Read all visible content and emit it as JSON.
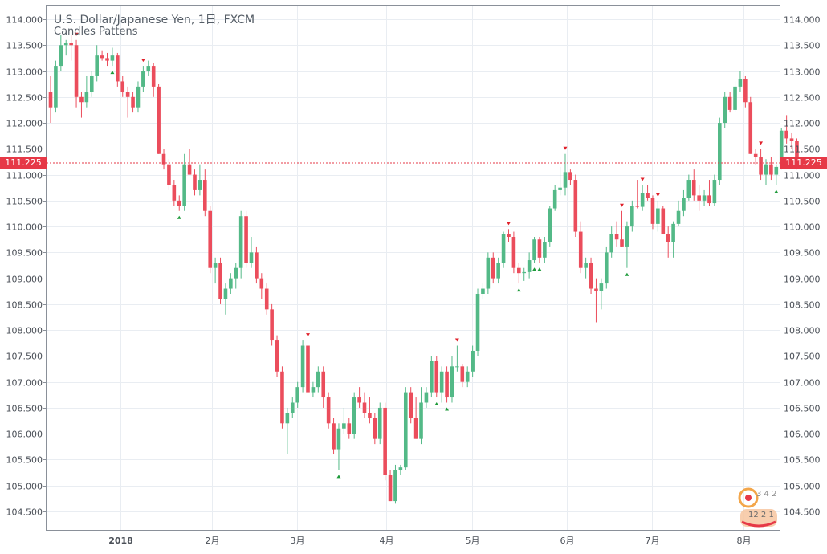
{
  "header": {
    "title": "U.S. Dollar/Japanese Yen, 1日, FXCM",
    "subtitle": "Candles Pattens"
  },
  "current_price": "111.225",
  "watermark": {
    "text_top": "3 4 2",
    "text_bottom": "12 2 1"
  },
  "colors": {
    "up": "#53b987",
    "down": "#eb4d5c",
    "price_line": "#e63947",
    "grid": "#e9edf2"
  },
  "chart_data": {
    "type": "candlestick",
    "title": "U.S. Dollar/Japanese Yen, 1日, FXCM",
    "ylim": [
      104.2,
      114.25
    ],
    "y_ticks": [
      "114.000",
      "113.500",
      "113.000",
      "112.500",
      "112.000",
      "111.500",
      "111.000",
      "110.500",
      "110.000",
      "109.500",
      "109.000",
      "108.500",
      "108.000",
      "107.500",
      "107.000",
      "106.500",
      "106.000",
      "105.500",
      "105.000",
      "104.500"
    ],
    "x_labels": [
      "2018",
      "2月",
      "3月",
      "4月",
      "5月",
      "6月",
      "7月",
      "8月"
    ],
    "candles": [
      {
        "o": 112.6,
        "h": 112.9,
        "l": 112.0,
        "c": 112.3
      },
      {
        "o": 112.3,
        "h": 113.2,
        "l": 112.2,
        "c": 113.1
      },
      {
        "o": 113.1,
        "h": 113.7,
        "l": 113.0,
        "c": 113.5
      },
      {
        "o": 113.5,
        "h": 113.6,
        "l": 113.3,
        "c": 113.55
      },
      {
        "o": 113.55,
        "h": 113.7,
        "l": 113.2,
        "c": 113.5
      },
      {
        "o": 113.5,
        "h": 113.6,
        "l": 112.3,
        "c": 112.5
      },
      {
        "o": 112.5,
        "h": 112.6,
        "l": 112.1,
        "c": 112.4
      },
      {
        "o": 112.4,
        "h": 112.9,
        "l": 112.3,
        "c": 112.6
      },
      {
        "o": 112.6,
        "h": 113.0,
        "l": 112.5,
        "c": 112.9
      },
      {
        "o": 112.9,
        "h": 113.5,
        "l": 112.8,
        "c": 113.3
      },
      {
        "o": 113.3,
        "h": 113.4,
        "l": 113.2,
        "c": 113.25
      },
      {
        "o": 113.25,
        "h": 113.35,
        "l": 113.1,
        "c": 113.2
      },
      {
        "o": 113.2,
        "h": 113.45,
        "l": 113.1,
        "c": 113.3
      },
      {
        "o": 113.3,
        "h": 113.35,
        "l": 112.7,
        "c": 112.8
      },
      {
        "o": 112.8,
        "h": 112.9,
        "l": 112.5,
        "c": 112.6
      },
      {
        "o": 112.6,
        "h": 112.7,
        "l": 112.1,
        "c": 112.5
      },
      {
        "o": 112.5,
        "h": 112.6,
        "l": 112.2,
        "c": 112.3
      },
      {
        "o": 112.3,
        "h": 112.8,
        "l": 112.2,
        "c": 112.7
      },
      {
        "o": 112.7,
        "h": 113.1,
        "l": 112.6,
        "c": 113.0
      },
      {
        "o": 113.0,
        "h": 113.2,
        "l": 112.9,
        "c": 113.1
      },
      {
        "o": 113.1,
        "h": 113.15,
        "l": 112.5,
        "c": 112.7
      },
      {
        "o": 112.7,
        "h": 112.75,
        "l": 111.4,
        "c": 111.4
      },
      {
        "o": 111.4,
        "h": 111.5,
        "l": 111.1,
        "c": 111.2
      },
      {
        "o": 111.2,
        "h": 111.3,
        "l": 110.7,
        "c": 110.8
      },
      {
        "o": 110.8,
        "h": 110.9,
        "l": 110.4,
        "c": 110.5
      },
      {
        "o": 110.5,
        "h": 110.6,
        "l": 110.3,
        "c": 110.4
      },
      {
        "o": 110.4,
        "h": 111.4,
        "l": 110.3,
        "c": 111.2
      },
      {
        "o": 111.2,
        "h": 111.5,
        "l": 111.0,
        "c": 111.0
      },
      {
        "o": 111.0,
        "h": 111.1,
        "l": 110.6,
        "c": 110.7
      },
      {
        "o": 110.7,
        "h": 111.2,
        "l": 110.6,
        "c": 110.9
      },
      {
        "o": 110.9,
        "h": 111.1,
        "l": 110.2,
        "c": 110.3
      },
      {
        "o": 110.3,
        "h": 110.4,
        "l": 109.1,
        "c": 109.2
      },
      {
        "o": 109.2,
        "h": 109.4,
        "l": 108.9,
        "c": 109.3
      },
      {
        "o": 109.3,
        "h": 109.4,
        "l": 108.5,
        "c": 108.6
      },
      {
        "o": 108.6,
        "h": 108.9,
        "l": 108.3,
        "c": 108.8
      },
      {
        "o": 108.8,
        "h": 109.1,
        "l": 108.7,
        "c": 109.0
      },
      {
        "o": 109.0,
        "h": 109.3,
        "l": 108.8,
        "c": 109.2
      },
      {
        "o": 109.2,
        "h": 110.3,
        "l": 109.0,
        "c": 110.2
      },
      {
        "o": 110.2,
        "h": 110.3,
        "l": 109.2,
        "c": 109.3
      },
      {
        "o": 109.3,
        "h": 109.8,
        "l": 109.2,
        "c": 109.5
      },
      {
        "o": 109.5,
        "h": 109.6,
        "l": 108.9,
        "c": 109.0
      },
      {
        "o": 109.0,
        "h": 109.1,
        "l": 108.6,
        "c": 108.8
      },
      {
        "o": 108.8,
        "h": 108.9,
        "l": 108.3,
        "c": 108.4
      },
      {
        "o": 108.4,
        "h": 108.5,
        "l": 107.7,
        "c": 107.8
      },
      {
        "o": 107.8,
        "h": 107.9,
        "l": 107.1,
        "c": 107.2
      },
      {
        "o": 107.2,
        "h": 107.3,
        "l": 106.1,
        "c": 106.2
      },
      {
        "o": 106.2,
        "h": 106.5,
        "l": 105.6,
        "c": 106.4
      },
      {
        "o": 106.4,
        "h": 106.7,
        "l": 106.3,
        "c": 106.6
      },
      {
        "o": 106.6,
        "h": 107.0,
        "l": 106.5,
        "c": 106.9
      },
      {
        "o": 106.9,
        "h": 107.8,
        "l": 106.8,
        "c": 107.7
      },
      {
        "o": 107.7,
        "h": 107.8,
        "l": 106.7,
        "c": 106.8
      },
      {
        "o": 106.8,
        "h": 107.0,
        "l": 106.7,
        "c": 106.9
      },
      {
        "o": 106.9,
        "h": 107.3,
        "l": 106.8,
        "c": 107.2
      },
      {
        "o": 107.2,
        "h": 107.3,
        "l": 106.5,
        "c": 106.7
      },
      {
        "o": 106.7,
        "h": 106.8,
        "l": 106.1,
        "c": 106.2
      },
      {
        "o": 106.2,
        "h": 106.3,
        "l": 105.6,
        "c": 105.7
      },
      {
        "o": 105.7,
        "h": 106.2,
        "l": 105.3,
        "c": 106.1
      },
      {
        "o": 106.1,
        "h": 106.5,
        "l": 106.0,
        "c": 106.2
      },
      {
        "o": 106.2,
        "h": 106.3,
        "l": 105.9,
        "c": 106.0
      },
      {
        "o": 106.0,
        "h": 106.8,
        "l": 105.9,
        "c": 106.7
      },
      {
        "o": 106.7,
        "h": 106.9,
        "l": 106.5,
        "c": 106.6
      },
      {
        "o": 106.6,
        "h": 106.8,
        "l": 106.3,
        "c": 106.4
      },
      {
        "o": 106.4,
        "h": 106.7,
        "l": 106.2,
        "c": 106.3
      },
      {
        "o": 106.3,
        "h": 106.4,
        "l": 105.8,
        "c": 105.9
      },
      {
        "o": 105.9,
        "h": 106.6,
        "l": 105.8,
        "c": 106.5
      },
      {
        "o": 106.5,
        "h": 106.6,
        "l": 105.1,
        "c": 105.2
      },
      {
        "o": 105.2,
        "h": 105.3,
        "l": 104.7,
        "c": 104.7
      },
      {
        "o": 104.7,
        "h": 105.4,
        "l": 104.65,
        "c": 105.3
      },
      {
        "o": 105.3,
        "h": 105.4,
        "l": 105.2,
        "c": 105.35
      },
      {
        "o": 105.35,
        "h": 106.9,
        "l": 105.3,
        "c": 106.8
      },
      {
        "o": 106.8,
        "h": 106.9,
        "l": 106.2,
        "c": 106.3
      },
      {
        "o": 106.3,
        "h": 106.7,
        "l": 105.9,
        "c": 105.9
      },
      {
        "o": 105.9,
        "h": 106.9,
        "l": 105.8,
        "c": 106.6
      },
      {
        "o": 106.6,
        "h": 106.9,
        "l": 106.5,
        "c": 106.8
      },
      {
        "o": 106.8,
        "h": 107.5,
        "l": 106.7,
        "c": 107.4
      },
      {
        "o": 107.4,
        "h": 107.5,
        "l": 106.7,
        "c": 106.8
      },
      {
        "o": 106.8,
        "h": 107.3,
        "l": 106.6,
        "c": 107.2
      },
      {
        "o": 107.2,
        "h": 107.3,
        "l": 106.6,
        "c": 106.7
      },
      {
        "o": 106.7,
        "h": 107.5,
        "l": 106.6,
        "c": 107.3
      },
      {
        "o": 107.3,
        "h": 107.7,
        "l": 107.2,
        "c": 107.3
      },
      {
        "o": 107.3,
        "h": 107.35,
        "l": 106.9,
        "c": 107.0
      },
      {
        "o": 107.0,
        "h": 107.3,
        "l": 106.9,
        "c": 107.2
      },
      {
        "o": 107.2,
        "h": 107.7,
        "l": 107.1,
        "c": 107.6
      },
      {
        "o": 107.6,
        "h": 108.8,
        "l": 107.5,
        "c": 108.7
      },
      {
        "o": 108.7,
        "h": 108.9,
        "l": 108.6,
        "c": 108.8
      },
      {
        "o": 108.8,
        "h": 109.5,
        "l": 108.7,
        "c": 109.4
      },
      {
        "o": 109.4,
        "h": 109.5,
        "l": 108.9,
        "c": 109.0
      },
      {
        "o": 109.0,
        "h": 109.4,
        "l": 108.9,
        "c": 109.3
      },
      {
        "o": 109.3,
        "h": 109.9,
        "l": 109.2,
        "c": 109.85
      },
      {
        "o": 109.85,
        "h": 109.95,
        "l": 109.7,
        "c": 109.8
      },
      {
        "o": 109.8,
        "h": 109.9,
        "l": 109.1,
        "c": 109.2
      },
      {
        "o": 109.2,
        "h": 109.3,
        "l": 108.9,
        "c": 109.1
      },
      {
        "o": 109.1,
        "h": 109.2,
        "l": 108.95,
        "c": 109.12
      },
      {
        "o": 109.12,
        "h": 109.5,
        "l": 109.0,
        "c": 109.35
      },
      {
        "o": 109.35,
        "h": 109.8,
        "l": 109.3,
        "c": 109.75
      },
      {
        "o": 109.75,
        "h": 109.8,
        "l": 109.3,
        "c": 109.4
      },
      {
        "o": 109.4,
        "h": 109.8,
        "l": 109.3,
        "c": 109.7
      },
      {
        "o": 109.7,
        "h": 110.4,
        "l": 109.6,
        "c": 110.35
      },
      {
        "o": 110.35,
        "h": 110.8,
        "l": 110.3,
        "c": 110.7
      },
      {
        "o": 110.7,
        "h": 111.15,
        "l": 110.6,
        "c": 110.75
      },
      {
        "o": 110.75,
        "h": 111.4,
        "l": 110.6,
        "c": 111.05
      },
      {
        "o": 111.05,
        "h": 111.1,
        "l": 110.8,
        "c": 110.9
      },
      {
        "o": 110.9,
        "h": 111.0,
        "l": 109.8,
        "c": 109.9
      },
      {
        "o": 109.9,
        "h": 110.1,
        "l": 109.1,
        "c": 109.2
      },
      {
        "o": 109.2,
        "h": 109.4,
        "l": 109.0,
        "c": 109.3
      },
      {
        "o": 109.3,
        "h": 109.4,
        "l": 108.7,
        "c": 108.8
      },
      {
        "o": 108.8,
        "h": 109.0,
        "l": 108.15,
        "c": 108.75
      },
      {
        "o": 108.75,
        "h": 109.0,
        "l": 108.4,
        "c": 108.9
      },
      {
        "o": 108.9,
        "h": 109.6,
        "l": 108.8,
        "c": 109.5
      },
      {
        "o": 109.5,
        "h": 110.0,
        "l": 109.4,
        "c": 109.85
      },
      {
        "o": 109.85,
        "h": 110.1,
        "l": 109.6,
        "c": 109.75
      },
      {
        "o": 109.75,
        "h": 110.3,
        "l": 109.6,
        "c": 109.6
      },
      {
        "o": 109.6,
        "h": 110.1,
        "l": 109.2,
        "c": 110.0
      },
      {
        "o": 110.0,
        "h": 110.5,
        "l": 109.9,
        "c": 110.4
      },
      {
        "o": 110.4,
        "h": 110.9,
        "l": 110.35,
        "c": 110.38
      },
      {
        "o": 110.38,
        "h": 110.8,
        "l": 110.3,
        "c": 110.65
      },
      {
        "o": 110.65,
        "h": 110.8,
        "l": 110.5,
        "c": 110.55
      },
      {
        "o": 110.55,
        "h": 110.6,
        "l": 109.95,
        "c": 110.05
      },
      {
        "o": 110.05,
        "h": 110.5,
        "l": 109.9,
        "c": 110.35
      },
      {
        "o": 110.35,
        "h": 110.4,
        "l": 109.85,
        "c": 109.85
      },
      {
        "o": 109.85,
        "h": 110.0,
        "l": 109.4,
        "c": 109.7
      },
      {
        "o": 109.7,
        "h": 110.1,
        "l": 109.4,
        "c": 110.05
      },
      {
        "o": 110.05,
        "h": 110.5,
        "l": 110.0,
        "c": 110.3
      },
      {
        "o": 110.3,
        "h": 110.7,
        "l": 110.2,
        "c": 110.55
      },
      {
        "o": 110.55,
        "h": 111.0,
        "l": 110.5,
        "c": 110.9
      },
      {
        "o": 110.9,
        "h": 111.1,
        "l": 110.5,
        "c": 110.6
      },
      {
        "o": 110.6,
        "h": 110.8,
        "l": 110.3,
        "c": 110.5
      },
      {
        "o": 110.5,
        "h": 110.7,
        "l": 110.4,
        "c": 110.6
      },
      {
        "o": 110.6,
        "h": 110.9,
        "l": 110.4,
        "c": 110.45
      },
      {
        "o": 110.45,
        "h": 111.0,
        "l": 110.4,
        "c": 110.9
      },
      {
        "o": 110.9,
        "h": 112.1,
        "l": 110.8,
        "c": 112.0
      },
      {
        "o": 112.0,
        "h": 112.6,
        "l": 111.9,
        "c": 112.5
      },
      {
        "o": 112.5,
        "h": 112.6,
        "l": 112.2,
        "c": 112.25
      },
      {
        "o": 112.25,
        "h": 112.8,
        "l": 112.2,
        "c": 112.7
      },
      {
        "o": 112.7,
        "h": 113.0,
        "l": 112.6,
        "c": 112.85
      },
      {
        "o": 112.85,
        "h": 112.9,
        "l": 112.3,
        "c": 112.4
      },
      {
        "o": 112.4,
        "h": 112.5,
        "l": 111.4,
        "c": 111.4
      },
      {
        "o": 111.4,
        "h": 111.5,
        "l": 111.2,
        "c": 111.35
      },
      {
        "o": 111.35,
        "h": 111.5,
        "l": 110.9,
        "c": 111.0
      },
      {
        "o": 111.0,
        "h": 111.3,
        "l": 110.8,
        "c": 111.2
      },
      {
        "o": 111.2,
        "h": 111.35,
        "l": 110.9,
        "c": 111.0
      },
      {
        "o": 111.0,
        "h": 111.2,
        "l": 110.8,
        "c": 111.15
      },
      {
        "o": 111.15,
        "h": 111.9,
        "l": 111.1,
        "c": 111.85
      },
      {
        "o": 111.85,
        "h": 112.15,
        "l": 111.6,
        "c": 111.7
      },
      {
        "o": 111.7,
        "h": 111.8,
        "l": 111.5,
        "c": 111.65
      },
      {
        "o": 111.65,
        "h": 111.7,
        "l": 111.1,
        "c": 111.225
      }
    ],
    "patterns": [
      {
        "i": 5,
        "dir": "bear"
      },
      {
        "i": 12,
        "dir": "bull"
      },
      {
        "i": 18,
        "dir": "bear"
      },
      {
        "i": 25,
        "dir": "bull"
      },
      {
        "i": 50,
        "dir": "bear"
      },
      {
        "i": 56,
        "dir": "bull"
      },
      {
        "i": 75,
        "dir": "bull"
      },
      {
        "i": 77,
        "dir": "bull"
      },
      {
        "i": 79,
        "dir": "bear"
      },
      {
        "i": 89,
        "dir": "bear"
      },
      {
        "i": 91,
        "dir": "bull"
      },
      {
        "i": 94,
        "dir": "bull"
      },
      {
        "i": 95,
        "dir": "bull"
      },
      {
        "i": 100,
        "dir": "bear"
      },
      {
        "i": 112,
        "dir": "bull"
      },
      {
        "i": 111,
        "dir": "bear"
      },
      {
        "i": 115,
        "dir": "bear"
      },
      {
        "i": 118,
        "dir": "bear"
      },
      {
        "i": 138,
        "dir": "bear"
      },
      {
        "i": 141,
        "dir": "bull"
      }
    ]
  }
}
